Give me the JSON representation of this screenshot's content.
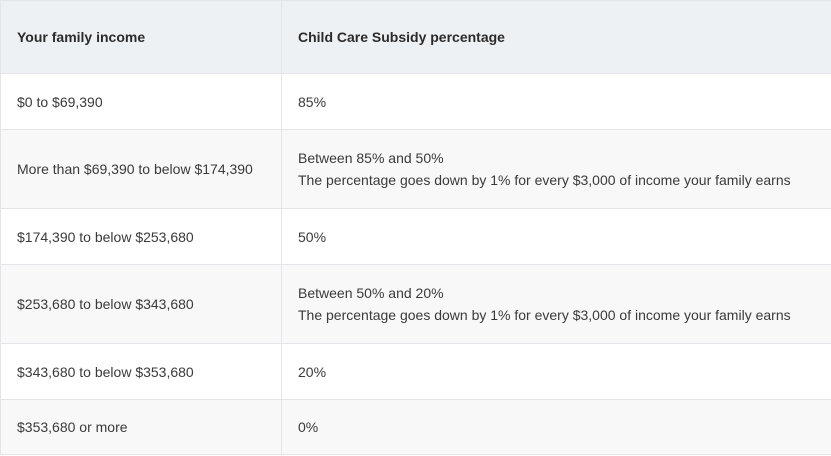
{
  "table": {
    "headers": [
      "Your family income",
      "Child Care Subsidy percentage"
    ],
    "rows": [
      {
        "income": "$0 to $69,390",
        "percentage": [
          "85%"
        ]
      },
      {
        "income": "More than $69,390 to below $174,390",
        "percentage": [
          "Between 85% and 50%",
          "The percentage goes down by 1% for every $3,000 of income your family earns"
        ]
      },
      {
        "income": "$174,390 to below $253,680",
        "percentage": [
          "50%"
        ]
      },
      {
        "income": "$253,680 to below $343,680",
        "percentage": [
          "Between 50% and 20%",
          "The percentage goes down by 1% for every $3,000 of income your family earns"
        ]
      },
      {
        "income": "$343,680 to below $353,680",
        "percentage": [
          "20%"
        ]
      },
      {
        "income": "$353,680 or more",
        "percentage": [
          "0%"
        ]
      }
    ]
  }
}
